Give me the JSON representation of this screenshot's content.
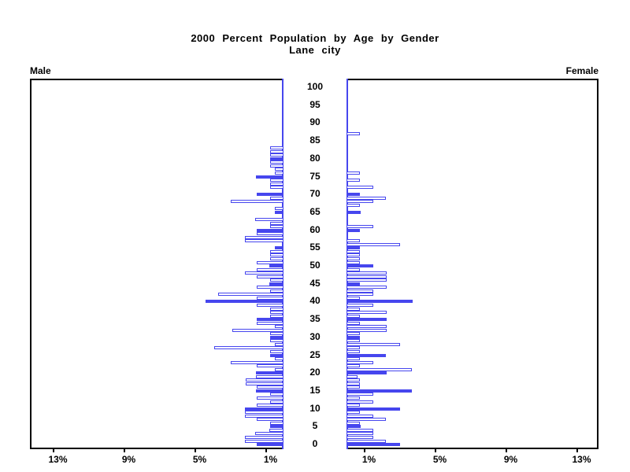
{
  "title": {
    "line1": "2000 Percent Population by Age by Gender",
    "line2": "Lane city"
  },
  "panels": {
    "male_label": "Male",
    "female_label": "Female"
  },
  "colors": {
    "bar_blue": "#4646ee",
    "box_black": "#000000",
    "background": "#ffffff"
  },
  "age_axis": {
    "tick_labels": [
      0,
      5,
      10,
      15,
      20,
      25,
      30,
      35,
      40,
      45,
      50,
      55,
      60,
      65,
      70,
      75,
      80,
      85,
      90,
      95,
      100
    ]
  },
  "pct_axis": {
    "male_ticks": [
      {
        "text": "13%",
        "value": 13
      },
      {
        "text": "9%",
        "value": 9
      },
      {
        "text": "5%",
        "value": 5
      },
      {
        "text": "1%",
        "value": 1
      }
    ],
    "female_ticks": [
      {
        "text": "1%",
        "value": 1
      },
      {
        "text": "5%",
        "value": 5
      },
      {
        "text": "9%",
        "value": 9
      },
      {
        "text": "13%",
        "value": 13
      }
    ]
  },
  "chart_data": {
    "type": "bar",
    "variant": "population-pyramid",
    "title": "2000 Percent Population by Age by Gender",
    "subtitle": "Lane city",
    "unit": "percent of total population",
    "age_axis": {
      "min": 0,
      "max": 100,
      "label_interval": 5,
      "bar_interval_years": 1
    },
    "pct_axis": {
      "ticks_percent": [
        1,
        5,
        9,
        13
      ],
      "panel_max_percent": 14.3
    },
    "bar_style_rule": "bars at ages divisible by 5 are solid filled blue; all other ages are hollow with blue outline",
    "age_start": 0,
    "series": [
      {
        "name": "Male",
        "side": "left",
        "values_by_single_year_of_age": [
          1.5,
          2.2,
          2.2,
          1.6,
          0.8,
          0.75,
          0.75,
          1.5,
          2.2,
          2.2,
          2.2,
          1.5,
          0.75,
          1.5,
          0.75,
          1.55,
          1.5,
          2.15,
          2.15,
          1.55,
          1.55,
          0.5,
          1.5,
          3.0,
          0.5,
          0.75,
          0.75,
          3.9,
          0.5,
          0.75,
          0.75,
          0.75,
          2.9,
          0.5,
          1.5,
          1.5,
          0.75,
          0.75,
          0.75,
          1.5,
          4.4,
          1.5,
          3.7,
          0.75,
          1.5,
          0.8,
          0.75,
          1.5,
          2.2,
          1.5,
          0.8,
          1.5,
          0.75,
          0.75,
          0.75,
          0.5,
          0,
          2.2,
          2.2,
          1.5,
          1.5,
          0.75,
          0.75,
          1.6,
          0,
          0.5,
          0.5,
          0,
          3.0,
          0.75,
          1.5,
          0,
          0.75,
          0.75,
          0.75,
          1.55,
          0.5,
          0.5,
          0.75,
          0.77,
          0.77,
          0.77,
          0.75,
          0.75,
          0,
          0,
          0,
          0
        ]
      },
      {
        "name": "Female",
        "side": "right",
        "values_by_single_year_of_age": [
          3.0,
          2.2,
          1.5,
          1.5,
          1.5,
          0.8,
          0.75,
          2.2,
          1.5,
          0.75,
          3.0,
          0.75,
          1.5,
          0.75,
          1.5,
          3.7,
          0.75,
          0.75,
          0.75,
          0.6,
          2.25,
          3.7,
          0.75,
          1.5,
          0.75,
          2.2,
          0.75,
          0.75,
          3.0,
          0.75,
          0.75,
          0.75,
          2.25,
          2.25,
          0.75,
          2.25,
          0.75,
          2.25,
          0.75,
          1.5,
          3.75,
          0.75,
          1.5,
          1.5,
          2.25,
          0.75,
          2.25,
          2.25,
          2.25,
          0.75,
          1.5,
          0.75,
          0.75,
          0.75,
          0.75,
          0.75,
          3.0,
          0.75,
          0,
          0,
          0.75,
          1.5,
          0,
          0,
          0,
          0.8,
          0,
          0.75,
          1.5,
          2.2,
          0.75,
          0,
          1.5,
          0,
          0.75,
          0,
          0.75,
          0,
          0,
          0,
          0,
          0,
          0,
          0,
          0,
          0,
          0,
          0.75
        ]
      }
    ]
  }
}
